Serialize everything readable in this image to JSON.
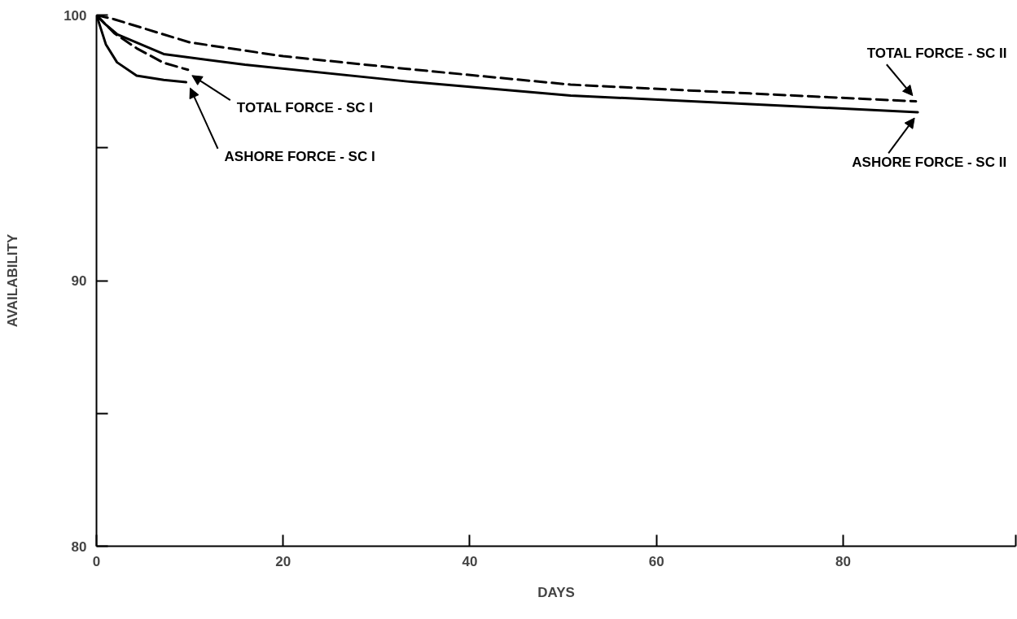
{
  "chart_data": {
    "type": "line",
    "xlabel": "DAYS",
    "ylabel": "AVAILABILITY",
    "xlim": [
      0,
      98.5
    ],
    "xticks": [
      0,
      20,
      40,
      60,
      80,
      {
        "value": 98.5,
        "label": null
      }
    ],
    "ylim": [
      80,
      100
    ],
    "yticks": [
      80,
      {
        "value": 85,
        "label": null
      },
      90,
      {
        "value": 95,
        "label": null
      },
      100
    ],
    "grid": false,
    "marker": "none",
    "series": [
      {
        "name": "TOTAL FORCE - SC I",
        "color": "#000000",
        "line_style": "dashed",
        "x": [
          0,
          1.9,
          4.3,
          7.2,
          9.8
        ],
        "values": [
          100,
          99.32,
          98.75,
          98.2,
          97.94
        ]
      },
      {
        "name": "ASHORE FORCE - SC I",
        "color": "#000000",
        "line_style": "solid",
        "x": [
          0,
          1,
          2.2,
          4.3,
          7.2,
          9.6
        ],
        "values": [
          100,
          98.9,
          98.22,
          97.72,
          97.56,
          97.47
        ]
      },
      {
        "name": "TOTAL FORCE - SC II",
        "color": "#000000",
        "line_style": "dashed",
        "x": [
          0,
          1.9,
          10,
          20,
          33.3,
          50.8,
          70,
          87.8
        ],
        "values": [
          100,
          99.84,
          98.97,
          98.45,
          97.97,
          97.38,
          97.05,
          96.75
        ]
      },
      {
        "name": "ASHORE FORCE - SC II",
        "color": "#000000",
        "line_style": "solid",
        "x": [
          0,
          0.8,
          2.2,
          7.2,
          15.9,
          33.3,
          50.8,
          70,
          88
        ],
        "values": [
          100,
          99.7,
          99.28,
          98.53,
          98.13,
          97.5,
          96.97,
          96.65,
          96.34
        ]
      }
    ]
  }
}
